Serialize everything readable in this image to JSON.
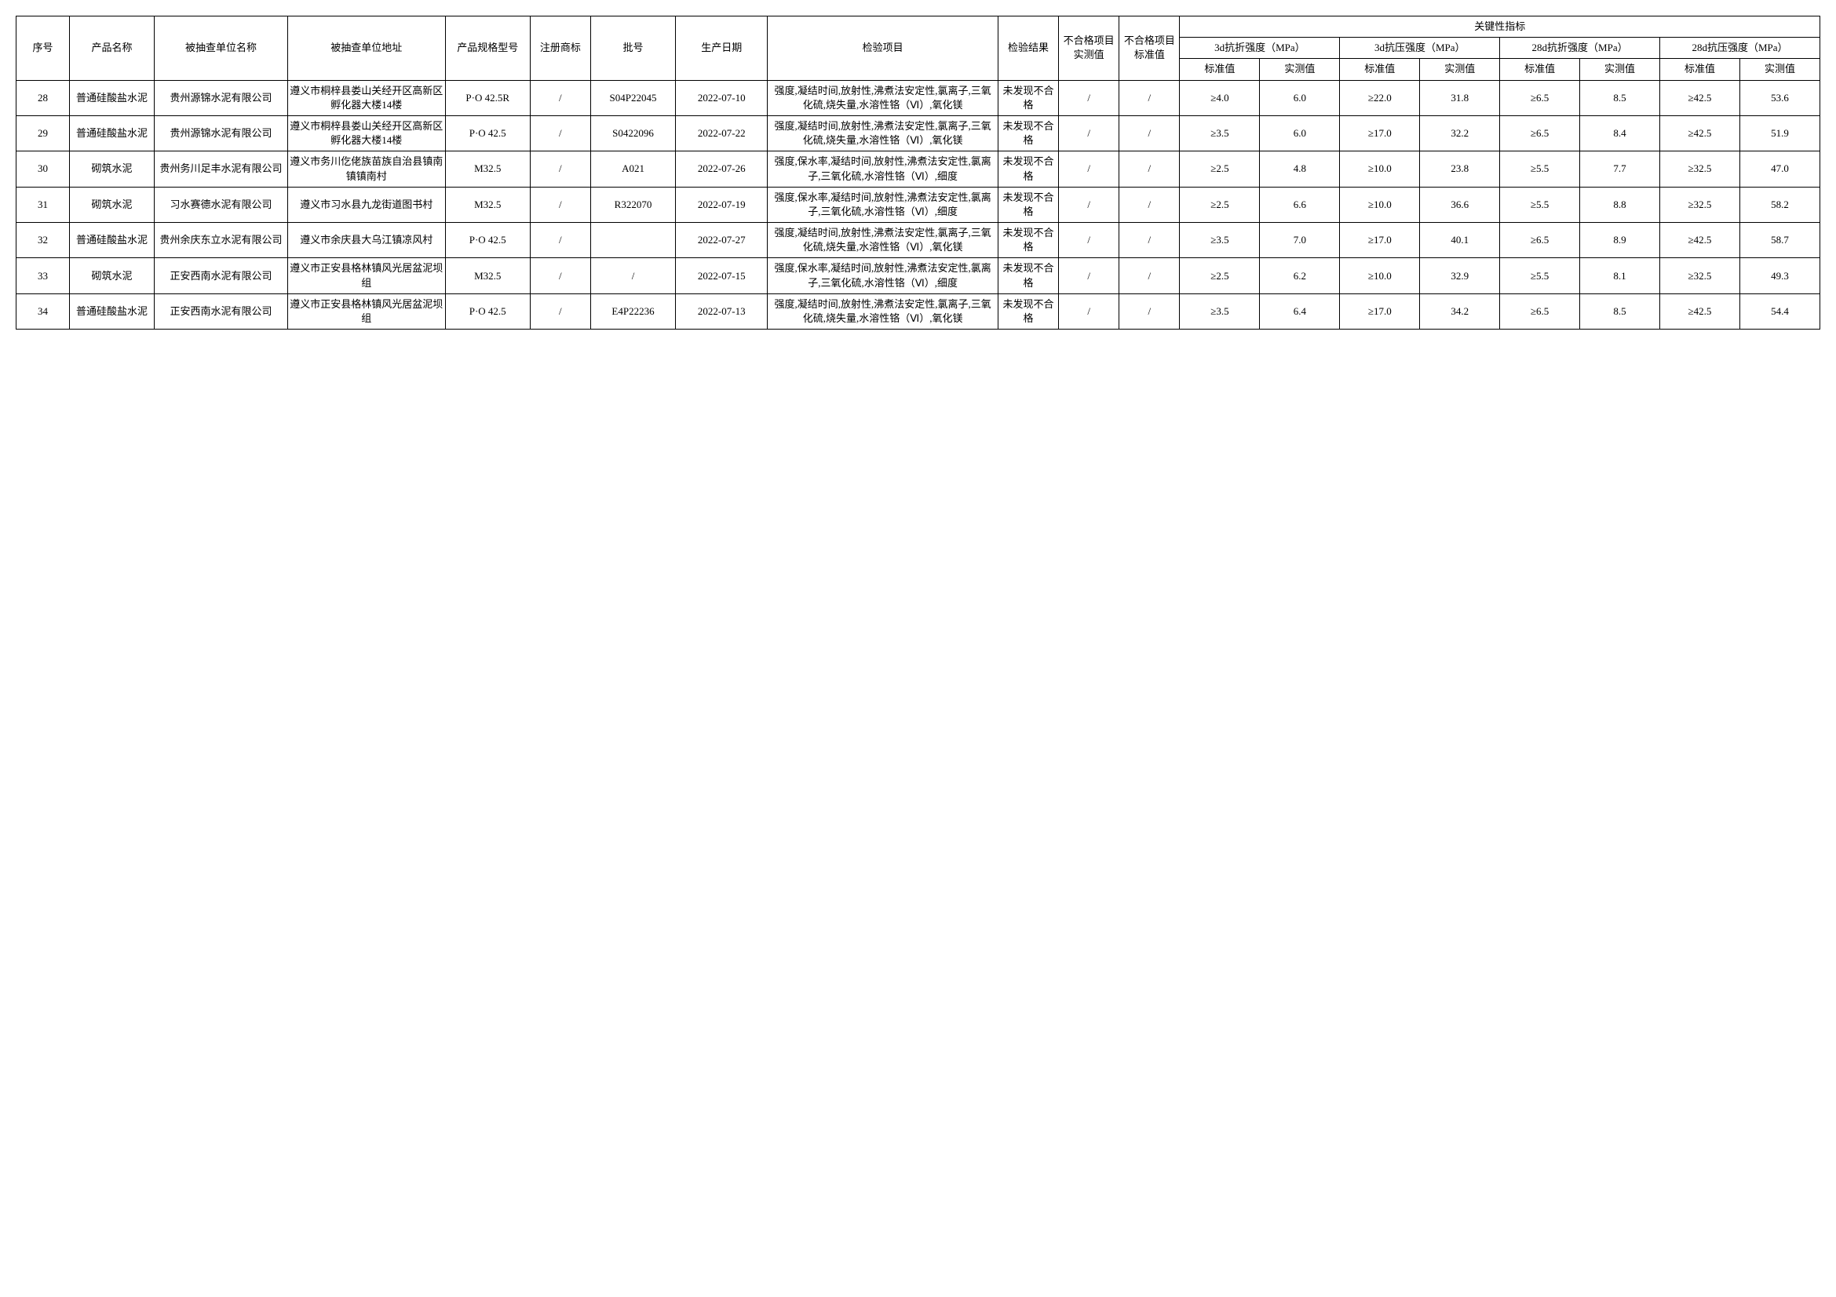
{
  "headers": {
    "seq": "序号",
    "product": "产品名称",
    "company": "被抽查单位名称",
    "address": "被抽查单位地址",
    "spec": "产品规格型号",
    "trademark": "注册商标",
    "batch": "批号",
    "date": "生产日期",
    "items": "检验项目",
    "result": "检验结果",
    "fail_measured": "不合格项目实测值",
    "fail_standard": "不合格项目标准值",
    "key_indicators": "关键性指标",
    "m_3d_flex": "3d抗折强度（MPa）",
    "m_3d_comp": "3d抗压强度（MPa）",
    "m_28d_flex": "28d抗折强度（MPa）",
    "m_28d_comp": "28d抗压强度（MPa）",
    "std": "标准值",
    "meas": "实测值"
  },
  "rows": [
    {
      "seq": "28",
      "product": "普通硅酸盐水泥",
      "company": "贵州源锦水泥有限公司",
      "address": "遵义市桐梓县娄山关经开区高新区孵化器大楼14楼",
      "spec": "P·O 42.5R",
      "trademark": "/",
      "batch": "S04P22045",
      "date": "2022-07-10",
      "items": "强度,凝结时间,放射性,沸煮法安定性,氯离子,三氧化硫,烧失量,水溶性铬（Ⅵ）,氧化镁",
      "result": "未发现不合格",
      "fail_measured": "/",
      "fail_standard": "/",
      "v": [
        "≥4.0",
        "6.0",
        "≥22.0",
        "31.8",
        "≥6.5",
        "8.5",
        "≥42.5",
        "53.6"
      ]
    },
    {
      "seq": "29",
      "product": "普通硅酸盐水泥",
      "company": "贵州源锦水泥有限公司",
      "address": "遵义市桐梓县娄山关经开区高新区孵化器大楼14楼",
      "spec": "P·O 42.5",
      "trademark": "/",
      "batch": "S0422096",
      "date": "2022-07-22",
      "items": "强度,凝结时间,放射性,沸煮法安定性,氯离子,三氧化硫,烧失量,水溶性铬（Ⅵ）,氧化镁",
      "result": "未发现不合格",
      "fail_measured": "/",
      "fail_standard": "/",
      "v": [
        "≥3.5",
        "6.0",
        "≥17.0",
        "32.2",
        "≥6.5",
        "8.4",
        "≥42.5",
        "51.9"
      ]
    },
    {
      "seq": "30",
      "product": "砌筑水泥",
      "company": "贵州务川足丰水泥有限公司",
      "address": "遵义市务川仡佬族苗族自治县镇南镇镇南村",
      "spec": "M32.5",
      "trademark": "/",
      "batch": "A021",
      "date": "2022-07-26",
      "items": "强度,保水率,凝结时间,放射性,沸煮法安定性,氯离子,三氧化硫,水溶性铬（Ⅵ）,细度",
      "result": "未发现不合格",
      "fail_measured": "/",
      "fail_standard": "/",
      "v": [
        "≥2.5",
        "4.8",
        "≥10.0",
        "23.8",
        "≥5.5",
        "7.7",
        "≥32.5",
        "47.0"
      ]
    },
    {
      "seq": "31",
      "product": "砌筑水泥",
      "company": "习水赛德水泥有限公司",
      "address": "遵义市习水县九龙街道图书村",
      "spec": "M32.5",
      "trademark": "/",
      "batch": "R322070",
      "date": "2022-07-19",
      "items": "强度,保水率,凝结时间,放射性,沸煮法安定性,氯离子,三氧化硫,水溶性铬（Ⅵ）,细度",
      "result": "未发现不合格",
      "fail_measured": "/",
      "fail_standard": "/",
      "v": [
        "≥2.5",
        "6.6",
        "≥10.0",
        "36.6",
        "≥5.5",
        "8.8",
        "≥32.5",
        "58.2"
      ]
    },
    {
      "seq": "32",
      "product": "普通硅酸盐水泥",
      "company": "贵州余庆东立水泥有限公司",
      "address": "遵义市余庆县大乌江镇凉风村",
      "spec": "P·O 42.5",
      "trademark": "/",
      "batch": "",
      "date": "2022-07-27",
      "items": "强度,凝结时间,放射性,沸煮法安定性,氯离子,三氧化硫,烧失量,水溶性铬（Ⅵ）,氧化镁",
      "result": "未发现不合格",
      "fail_measured": "/",
      "fail_standard": "/",
      "v": [
        "≥3.5",
        "7.0",
        "≥17.0",
        "40.1",
        "≥6.5",
        "8.9",
        "≥42.5",
        "58.7"
      ]
    },
    {
      "seq": "33",
      "product": "砌筑水泥",
      "company": "正安西南水泥有限公司",
      "address": "遵义市正安县格林镇风光居盆泥坝组",
      "spec": "M32.5",
      "trademark": "/",
      "batch": "/",
      "date": "2022-07-15",
      "items": "强度,保水率,凝结时间,放射性,沸煮法安定性,氯离子,三氧化硫,水溶性铬（Ⅵ）,细度",
      "result": "未发现不合格",
      "fail_measured": "/",
      "fail_standard": "/",
      "v": [
        "≥2.5",
        "6.2",
        "≥10.0",
        "32.9",
        "≥5.5",
        "8.1",
        "≥32.5",
        "49.3"
      ]
    },
    {
      "seq": "34",
      "product": "普通硅酸盐水泥",
      "company": "正安西南水泥有限公司",
      "address": "遵义市正安县格林镇风光居盆泥坝组",
      "spec": "P·O 42.5",
      "trademark": "/",
      "batch": "E4P22236",
      "date": "2022-07-13",
      "items": "强度,凝结时间,放射性,沸煮法安定性,氯离子,三氧化硫,烧失量,水溶性铬（Ⅵ）,氧化镁",
      "result": "未发现不合格",
      "fail_measured": "/",
      "fail_standard": "/",
      "v": [
        "≥3.5",
        "6.4",
        "≥17.0",
        "34.2",
        "≥6.5",
        "8.5",
        "≥42.5",
        "54.4"
      ]
    }
  ]
}
